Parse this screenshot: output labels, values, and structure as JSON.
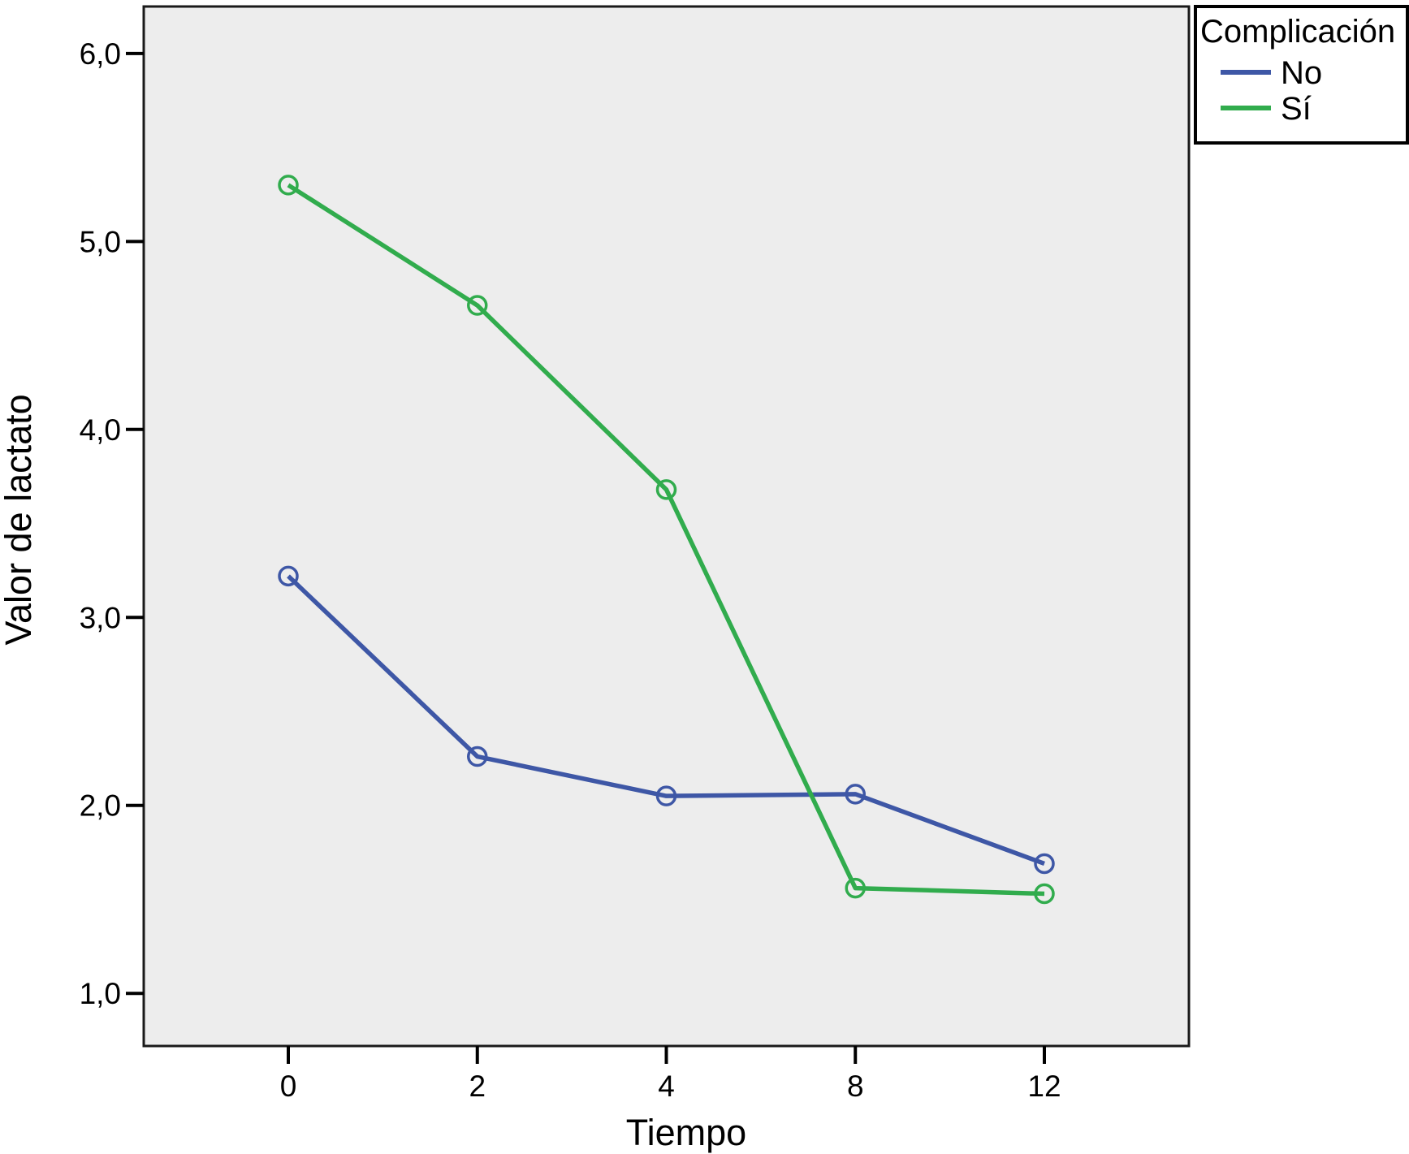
{
  "chart_data": {
    "type": "line",
    "title": "",
    "xlabel": "Tiempo",
    "ylabel": "Valor de lactato",
    "legend_title": "Complicación",
    "legend_position": "top-right-outside",
    "grid": false,
    "plot_background": "#EDEDED",
    "frame_color": "#1a1a1a",
    "x_scale": "categorical",
    "x_tick_labels": [
      "0",
      "2",
      "4",
      "8",
      "12"
    ],
    "x_values": [
      0,
      2,
      4,
      8,
      12
    ],
    "y_ticks": [
      {
        "value": 1.0,
        "label": "1,0"
      },
      {
        "value": 2.0,
        "label": "2,0"
      },
      {
        "value": 3.0,
        "label": "3,0"
      },
      {
        "value": 4.0,
        "label": "4,0"
      },
      {
        "value": 5.0,
        "label": "5,0"
      },
      {
        "value": 6.0,
        "label": "6,0"
      }
    ],
    "ylim": [
      0.72,
      6.25
    ],
    "marker": "open-circle",
    "series": [
      {
        "name": "No",
        "color": "#3E57A6",
        "values": [
          3.22,
          2.26,
          2.05,
          2.06,
          1.69
        ]
      },
      {
        "name": "Sí",
        "color": "#31AC4D",
        "values": [
          5.3,
          4.66,
          3.68,
          1.56,
          1.53
        ]
      }
    ]
  }
}
